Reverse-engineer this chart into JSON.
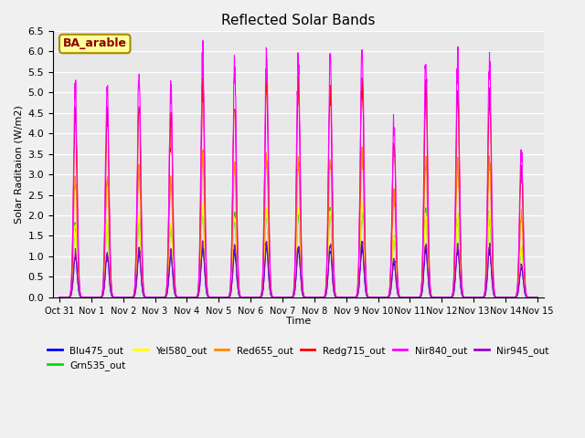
{
  "title": "Reflected Solar Bands",
  "xlabel": "Time",
  "ylabel": "Solar Raditaion (W/m2)",
  "annotation": "BA_arable",
  "ylim": [
    0,
    6.5
  ],
  "series": [
    {
      "name": "Blu475_out",
      "color": "#0000ff",
      "scale": 0.2
    },
    {
      "name": "Grn535_out",
      "color": "#00dd00",
      "scale": 0.35
    },
    {
      "name": "Yel580_out",
      "color": "#ffff00",
      "scale": 0.36
    },
    {
      "name": "Red655_out",
      "color": "#ff8800",
      "scale": 0.58
    },
    {
      "name": "Redg715_out",
      "color": "#ff0000",
      "scale": 0.88
    },
    {
      "name": "Nir840_out",
      "color": "#ff00ff",
      "scale": 1.0
    },
    {
      "name": "Nir945_out",
      "color": "#9900cc",
      "scale": 0.22
    }
  ],
  "day_peaks_nir840": [
    5.05,
    5.05,
    5.4,
    5.0,
    5.88,
    5.55,
    5.88,
    5.88,
    5.9,
    6.1,
    4.28,
    5.8,
    5.75,
    5.75,
    3.57
  ],
  "xtick_labels": [
    "Oct 31",
    "Nov 1",
    "Nov 2",
    "Nov 3",
    "Nov 4",
    "Nov 5",
    "Nov 6",
    "Nov 7",
    "Nov 8",
    "Nov 9",
    "Nov 10",
    "Nov 11",
    "Nov 12",
    "Nov 13",
    "Nov 14",
    "Nov 15"
  ],
  "xtick_positions": [
    0,
    1,
    2,
    3,
    4,
    5,
    6,
    7,
    8,
    9,
    10,
    11,
    12,
    13,
    14,
    15
  ],
  "fig_bg": "#f0f0f0",
  "ax_bg": "#e8e8e8",
  "grid_color": "#ffffff",
  "annot_text_color": "#8B0000",
  "annot_bg": "#ffff99",
  "annot_edge": "#aa8800"
}
